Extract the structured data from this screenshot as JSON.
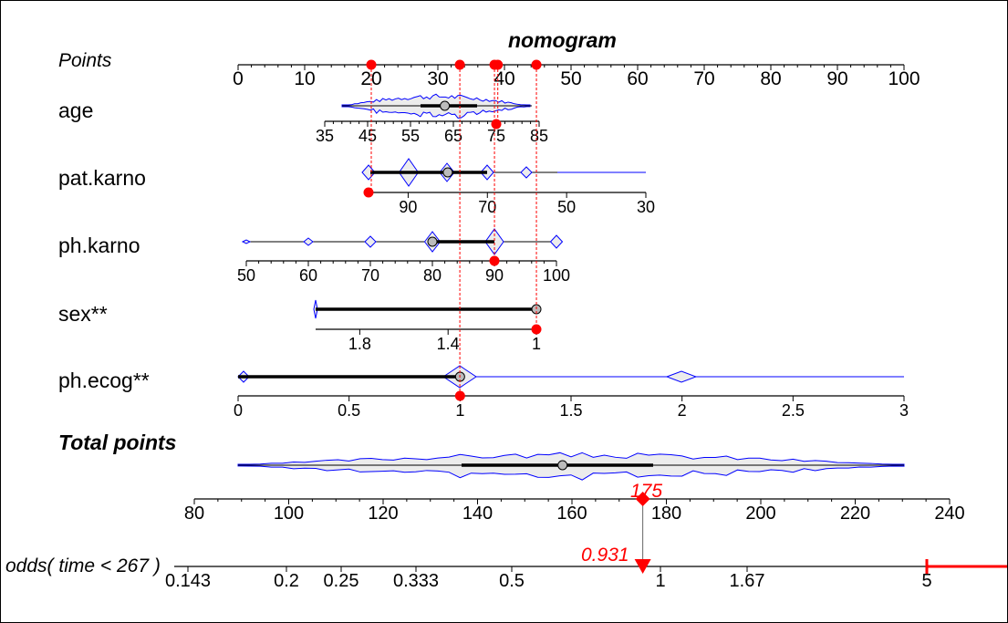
{
  "chart_data": {
    "type": "nomogram",
    "title": "nomogram",
    "points_axis": {
      "label": "Points",
      "range": [
        0,
        100
      ],
      "ticks": [
        0,
        10,
        20,
        30,
        40,
        50,
        60,
        70,
        80,
        90,
        100
      ]
    },
    "variables": [
      {
        "name": "age",
        "ticks": [
          35,
          45,
          55,
          65,
          75,
          85
        ],
        "range": [
          35,
          85
        ],
        "selected_value": 75,
        "selected_points": 39,
        "median": 63
      },
      {
        "name": "pat.karno",
        "ticks": [
          90,
          70,
          50,
          30
        ],
        "range": [
          100,
          30
        ],
        "selected_value": 100,
        "selected_points": 20,
        "median": 80
      },
      {
        "name": "ph.karno",
        "ticks": [
          50,
          60,
          70,
          80,
          90,
          100
        ],
        "range": [
          50,
          100
        ],
        "selected_value": 90,
        "selected_points": 38.5,
        "median": 80
      },
      {
        "name": "sex**",
        "ticks": [
          1.8,
          1.4,
          1
        ],
        "range": [
          2,
          1
        ],
        "selected_value": 1,
        "selected_points": 44.8,
        "median": 1
      },
      {
        "name": "ph.ecog**",
        "ticks": [
          0,
          0.5,
          1,
          1.5,
          2,
          2.5,
          3
        ],
        "range": [
          0,
          3
        ],
        "selected_value": 1,
        "selected_points": 33.3,
        "median": 1
      }
    ],
    "total_points": {
      "label": "Total points",
      "ticks": [
        80,
        100,
        120,
        140,
        160,
        180,
        200,
        220,
        240
      ],
      "range": [
        80,
        240
      ],
      "value": 175,
      "value_label": "175",
      "median": 158
    },
    "odds": {
      "label": "odds( time < 267 )",
      "ticks": [
        "0.143",
        "0.2",
        "0.25",
        "0.333",
        "0.5",
        "1",
        "1.67",
        "5"
      ],
      "value": 0.931,
      "value_label": "0.931"
    },
    "colors": {
      "selection": "#ff0000",
      "distribution": "#0000ff",
      "fill": "#ececec"
    }
  }
}
